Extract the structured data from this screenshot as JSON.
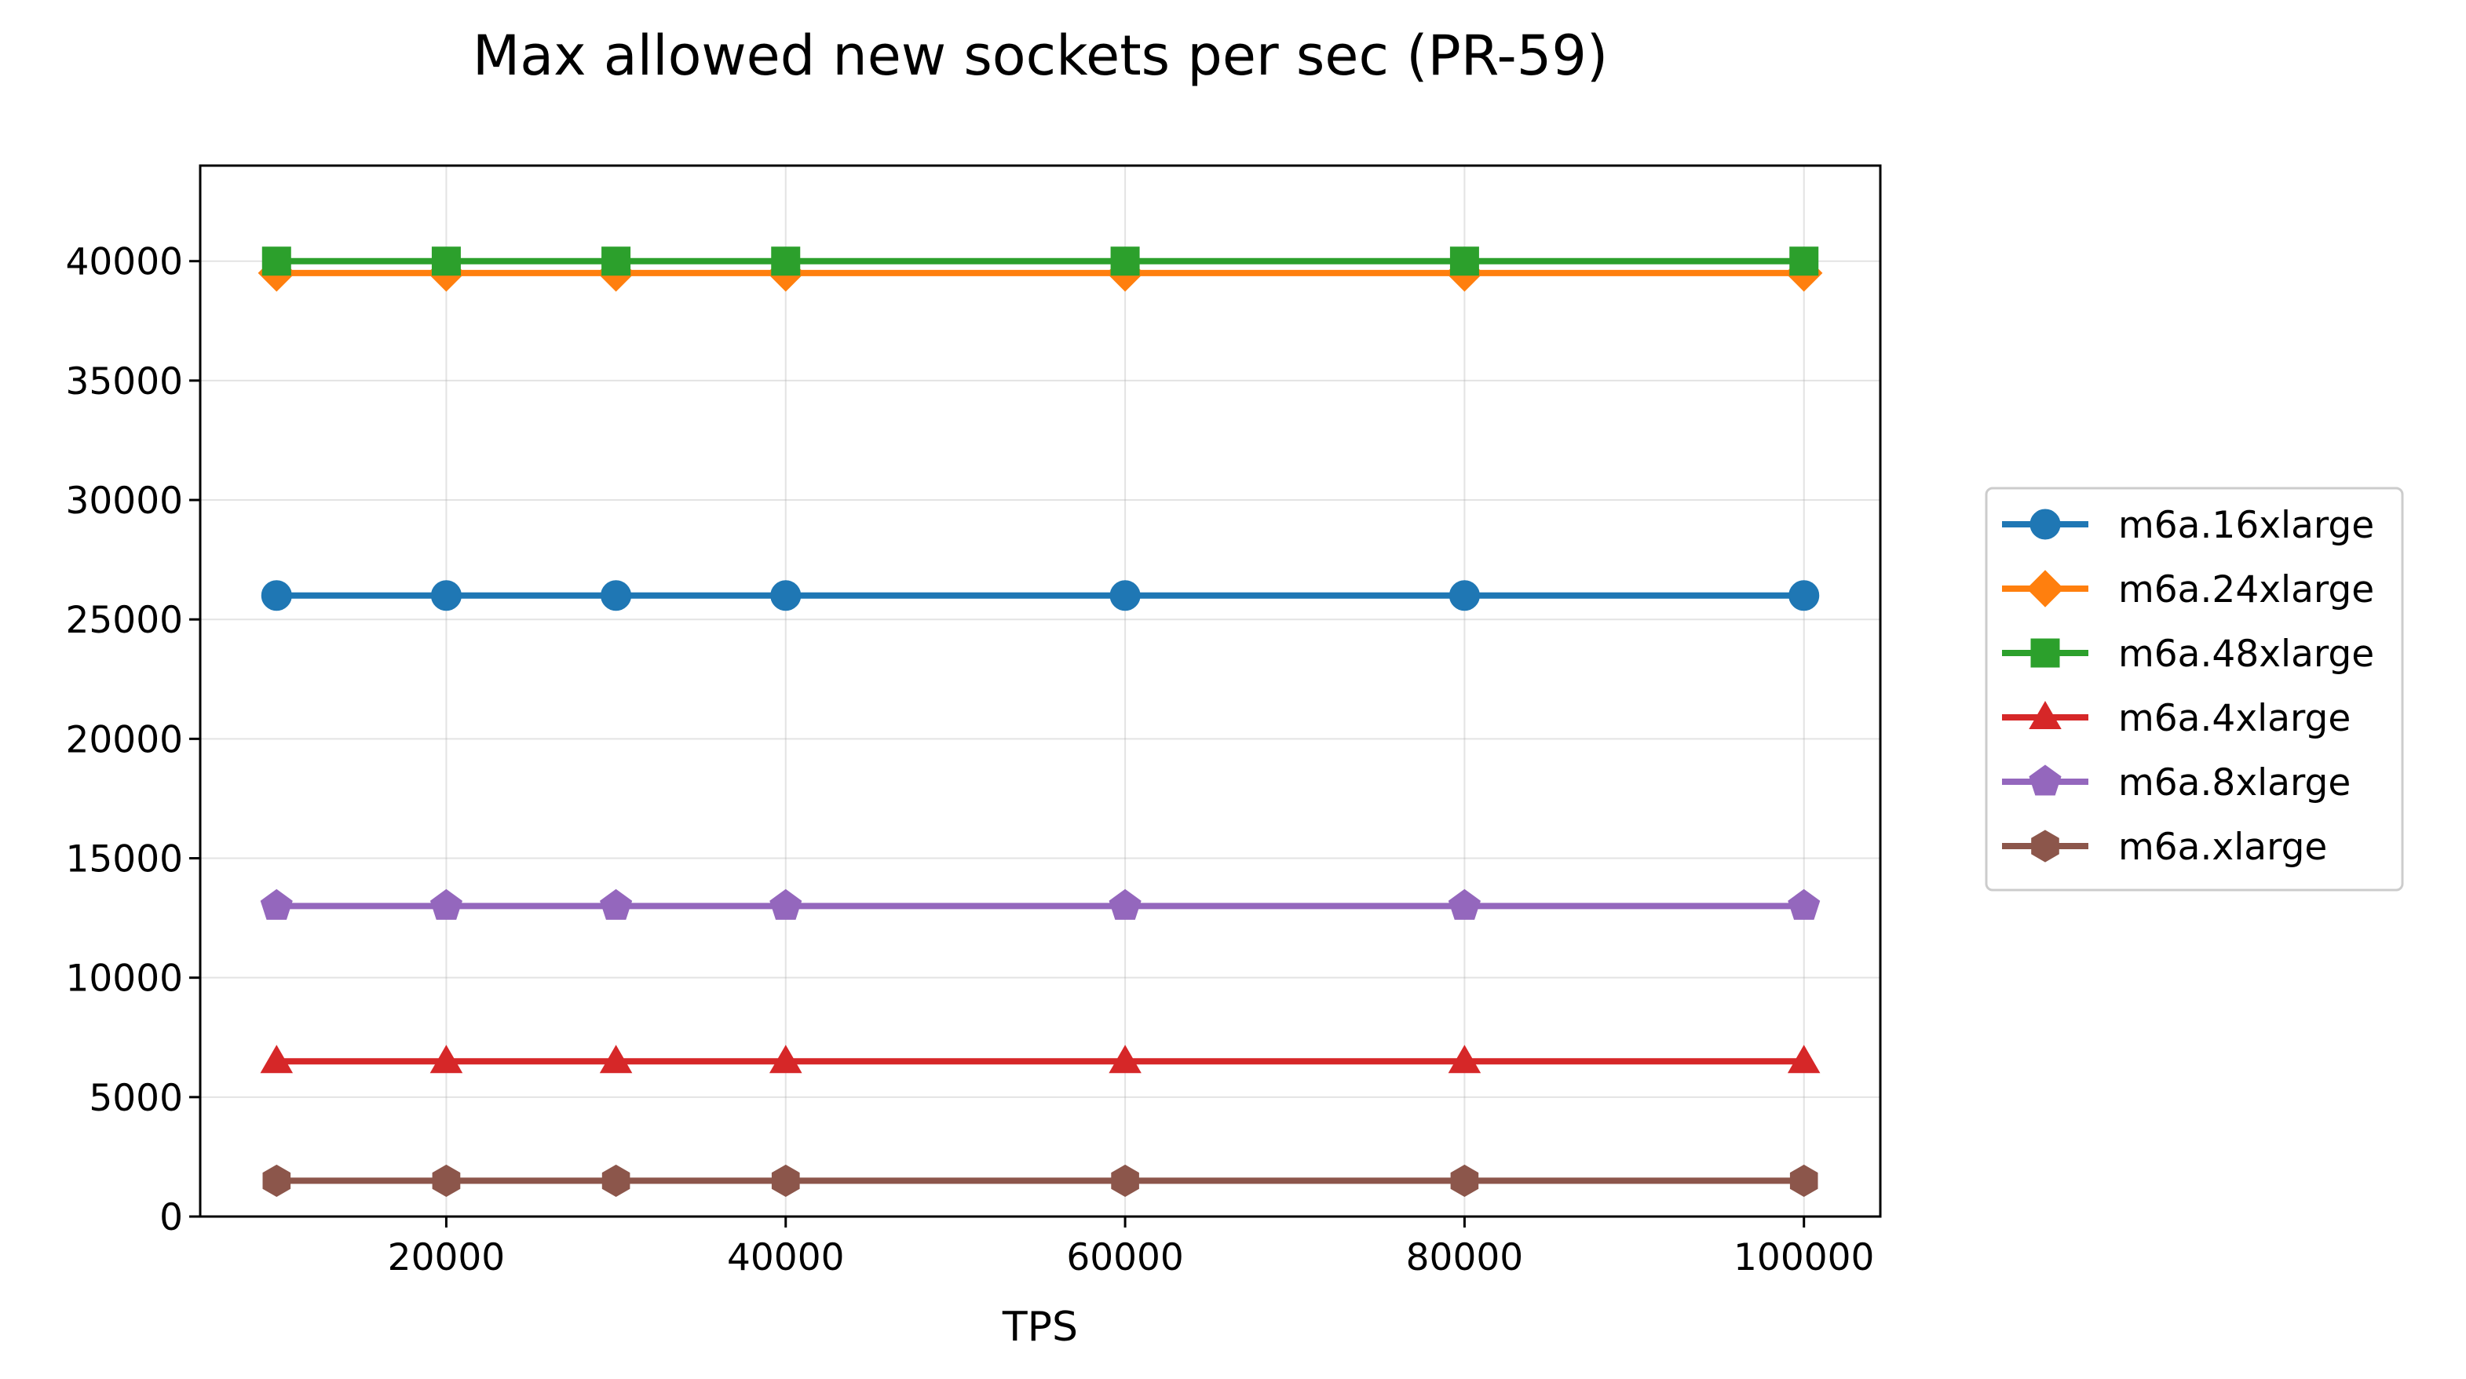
{
  "chart_data": {
    "type": "line",
    "title": "Max allowed new sockets per sec (PR-59)",
    "xlabel": "TPS",
    "ylabel": "",
    "x": [
      10000,
      20000,
      30000,
      40000,
      60000,
      80000,
      100000
    ],
    "xlim": [
      5500,
      104500
    ],
    "ylim": [
      0,
      44000
    ],
    "xticks": [
      20000,
      40000,
      60000,
      80000,
      100000
    ],
    "yticks": [
      0,
      5000,
      10000,
      15000,
      20000,
      25000,
      30000,
      35000,
      40000
    ],
    "grid": true,
    "legend_position": "center-right, outside plot",
    "series": [
      {
        "name": "m6a.16xlarge",
        "values": [
          26000,
          26000,
          26000,
          26000,
          26000,
          26000,
          26000
        ],
        "color": "#1f77b4",
        "marker": "circle"
      },
      {
        "name": "m6a.24xlarge",
        "values": [
          39500,
          39500,
          39500,
          39500,
          39500,
          39500,
          39500
        ],
        "color": "#ff7f0e",
        "marker": "diamond"
      },
      {
        "name": "m6a.48xlarge",
        "values": [
          40000,
          40000,
          40000,
          40000,
          40000,
          40000,
          40000
        ],
        "color": "#2ca02c",
        "marker": "square"
      },
      {
        "name": "m6a.4xlarge",
        "values": [
          6500,
          6500,
          6500,
          6500,
          6500,
          6500,
          6500
        ],
        "color": "#d62728",
        "marker": "triangle"
      },
      {
        "name": "m6a.8xlarge",
        "values": [
          13000,
          13000,
          13000,
          13000,
          13000,
          13000,
          13000
        ],
        "color": "#9467bd",
        "marker": "pentagon"
      },
      {
        "name": "m6a.xlarge",
        "values": [
          1500,
          1500,
          1500,
          1500,
          1500,
          1500,
          1500
        ],
        "color": "#8c564b",
        "marker": "hexagon"
      }
    ]
  }
}
